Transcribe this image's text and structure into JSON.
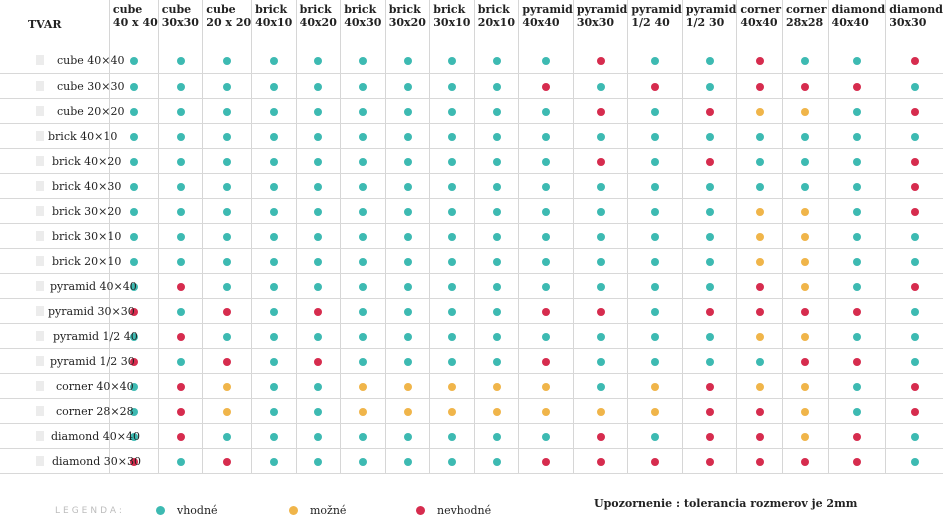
{
  "header_label": "TVAR",
  "columns": [
    [
      "cube",
      "40 x 40"
    ],
    [
      "cube",
      "30x30"
    ],
    [
      "cube",
      "20 x 20"
    ],
    [
      "brick",
      "40x10"
    ],
    [
      "brick",
      "40x20"
    ],
    [
      "brick",
      "40x30"
    ],
    [
      "brick",
      "30x20"
    ],
    [
      "brick",
      "30x10"
    ],
    [
      "brick",
      "20x10"
    ],
    [
      "pyramid",
      "40x40"
    ],
    [
      "pyramid",
      "30x30"
    ],
    [
      "pyramid",
      "1/2 40"
    ],
    [
      "pyramid",
      "1/2 30"
    ],
    [
      "corner",
      "40x40"
    ],
    [
      "corner",
      "28x28"
    ],
    [
      "diamond",
      "40x40"
    ],
    [
      "diamond",
      "30x30"
    ]
  ],
  "rows": [
    {
      "label": "cube 40×40",
      "values": "ggggggggggrggrggr"
    },
    {
      "label": "cube 30×30",
      "values": "gggggggggrgrgrrrg"
    },
    {
      "label": "cube 20×20",
      "values": "ggggggggggrgryygr"
    },
    {
      "label": "brick 40×10",
      "values": "ggggggggggggggggg"
    },
    {
      "label": "brick 40×20",
      "values": "ggggggggggrgrgggr"
    },
    {
      "label": "brick 40×30",
      "values": "ggggggggggggggggr"
    },
    {
      "label": "brick 30×20",
      "values": "gggggggggggggyygr"
    },
    {
      "label": "brick 30×10",
      "values": "gggggggggggggyygg"
    },
    {
      "label": "brick 20×10",
      "values": "gggggggggggggyygg"
    },
    {
      "label": "pyramid 40×40",
      "values": "grgggggggggggrygr"
    },
    {
      "label": "pyramid 30×30",
      "values": "rgrgrggggrrgrrrrg"
    },
    {
      "label": "pyramid 1/2 40",
      "values": "grgggggggggggyygg"
    },
    {
      "label": "pyramid 1/2 30",
      "values": "rgrgrggggrggggrrg"
    },
    {
      "label": "corner 40×40",
      "values": "gryggyyyyygyryygr"
    },
    {
      "label": "corner 28×28",
      "values": "gryggyyyyyyyrrygr"
    },
    {
      "label": "diamond 40×40",
      "values": "grggggggggrgrryrg"
    },
    {
      "label": "diamond 30×30",
      "values": "rgrggggggrrrrrrrg"
    }
  ],
  "row_label_offsets": [
    0,
    0,
    0,
    -1,
    0,
    0,
    0,
    0,
    0,
    0,
    0,
    0,
    0,
    0,
    0,
    0,
    0
  ],
  "status_colors": {
    "g": "#3dbab2",
    "y": "#f0b54a",
    "r": "#d62c4e"
  },
  "legend": {
    "title": "LEGENDA:",
    "items": [
      {
        "key": "g",
        "label": "vhodné"
      },
      {
        "key": "y",
        "label": "možné"
      },
      {
        "key": "r",
        "label": "nevhodné"
      }
    ]
  },
  "note": "Upozornenie : tolerancia rozmerov je  2mm"
}
